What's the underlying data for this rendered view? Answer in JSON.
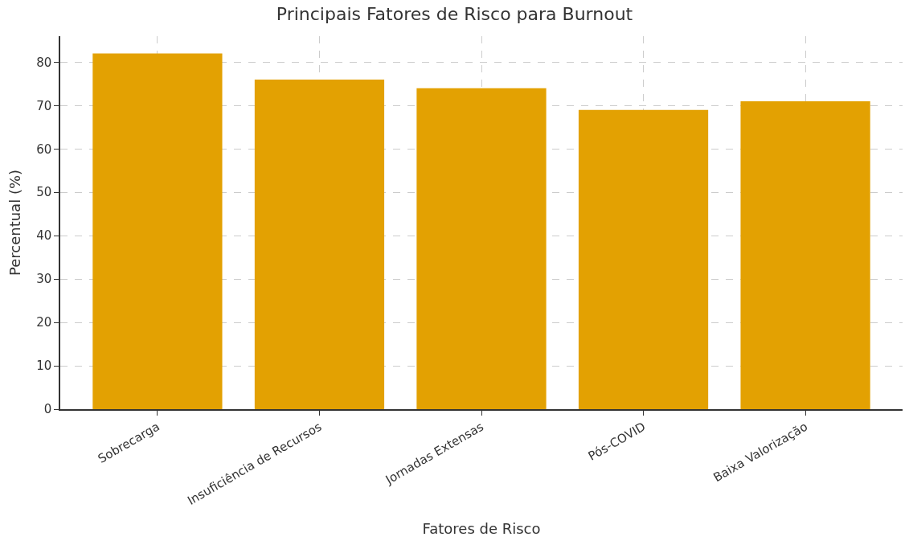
{
  "chart_data": {
    "type": "bar",
    "title": "Principais Fatores de Risco para Burnout",
    "xlabel": "Fatores de Risco",
    "ylabel": "Percentual (%)",
    "categories": [
      "Sobrecarga",
      "Insuficiência de Recursos",
      "Jornadas Extensas",
      "Pós-COVID",
      "Baixa Valorização"
    ],
    "values": [
      82,
      76,
      74,
      69,
      71
    ],
    "color": "#e3a102",
    "ylim": [
      0,
      86
    ],
    "yticks": [
      0,
      10,
      20,
      30,
      40,
      50,
      60,
      70,
      80
    ],
    "grid": true
  }
}
